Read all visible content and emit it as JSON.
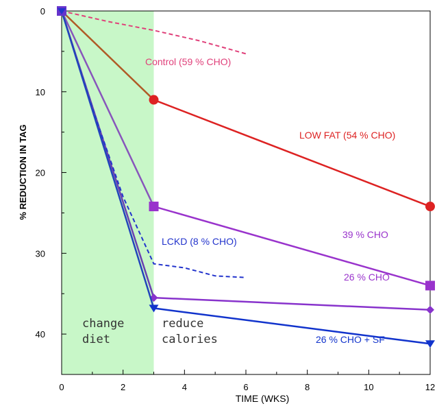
{
  "chart_data": {
    "type": "line",
    "xlabel": "TIME (WKS)",
    "ylabel": "% REDUCTION IN TAG",
    "xlim": [
      0,
      12
    ],
    "ylim": [
      0,
      45
    ],
    "y_inverted": true,
    "x_ticks": [
      "0",
      "2",
      "4",
      "6",
      "8",
      "10",
      "12"
    ],
    "y_ticks": [
      "0",
      "10",
      "20",
      "30",
      "40"
    ],
    "grid": false,
    "shaded_region": {
      "x_range": [
        0,
        3
      ],
      "color": "#c8f7c8"
    },
    "phase_labels": [
      {
        "text": [
          "change",
          "diet"
        ]
      },
      {
        "text": [
          "reduce",
          "calories"
        ]
      }
    ],
    "series": [
      {
        "name": "Control (59 % CHO)",
        "color": "#e0407a",
        "dashed": true,
        "marker": "none",
        "points": [
          [
            0,
            0
          ],
          [
            1.5,
            1.3
          ],
          [
            3,
            2.4
          ],
          [
            4.5,
            3.7
          ],
          [
            6,
            5.3
          ]
        ]
      },
      {
        "name": "LOW FAT (54 % CHO)",
        "color": "#dd2222",
        "early_color": "#b05a26",
        "marker": "circle",
        "points": [
          [
            0,
            0
          ],
          [
            3,
            11
          ],
          [
            12,
            24.2
          ]
        ]
      },
      {
        "name": "39 % CHO",
        "color": "#9933cc",
        "early_color": "#8855bb",
        "marker": "square",
        "points": [
          [
            0,
            0
          ],
          [
            3,
            24.2
          ],
          [
            12,
            34
          ]
        ]
      },
      {
        "name": "26 % CHO",
        "color": "#8833cc",
        "early_color": "#6a40b0",
        "marker": "diamond",
        "points": [
          [
            0,
            0
          ],
          [
            3,
            35.5
          ],
          [
            12,
            37
          ]
        ]
      },
      {
        "name": "LCKD (8 % CHO)",
        "color": "#2233cc",
        "dashed": true,
        "marker": "none",
        "points": [
          [
            0,
            0
          ],
          [
            1,
            12
          ],
          [
            2,
            23
          ],
          [
            3,
            31.3
          ],
          [
            4,
            31.8
          ],
          [
            5,
            32.8
          ],
          [
            6,
            33
          ]
        ]
      },
      {
        "name": "26 % CHO + SF",
        "color": "#1133cc",
        "early_color": "#2244bb",
        "marker": "triangle-down",
        "points": [
          [
            0,
            0
          ],
          [
            3,
            36.8
          ],
          [
            12,
            41.2
          ]
        ]
      }
    ]
  }
}
